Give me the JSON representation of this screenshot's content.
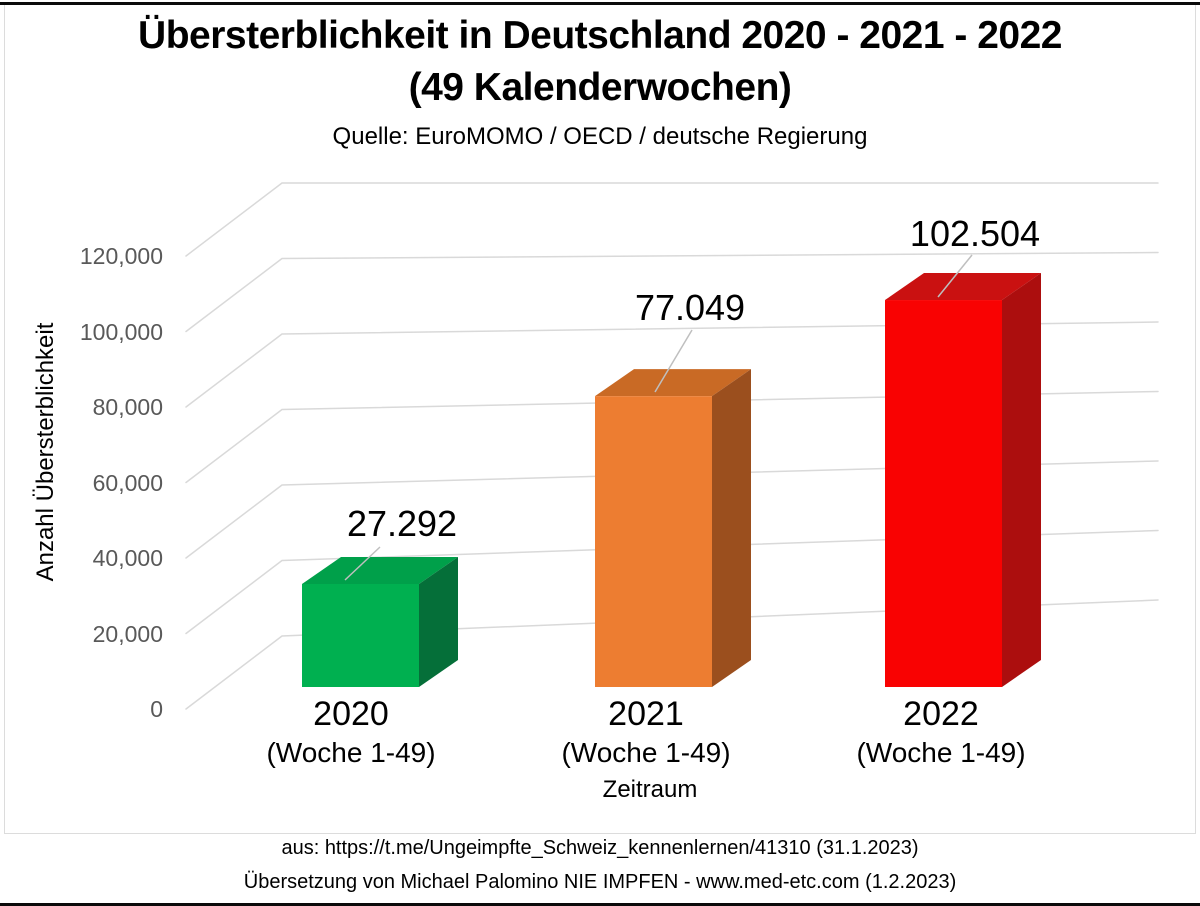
{
  "page": {
    "title_line1": "Übersterblichkeit in Deutschland 2020 - 2021 - 2022",
    "title_line2": "(49 Kalenderwochen)",
    "subtitle": "Quelle: EuroMOMO / OECD / deutsche Regierung",
    "footer_line1": "aus: https://t.me/Ungeimpfte_Schweiz_kennenlernen/41310 (31.1.2023)",
    "footer_line2": "Übersetzung von Michael Palomino NIE IMPFEN - www.med-etc.com (1.2.2023)"
  },
  "chart_data": {
    "type": "bar",
    "style": "3d-column",
    "title": "Übersterblichkeit in Deutschland 2020 - 2021 - 2022 (49 Kalenderwochen)",
    "subtitle": "Quelle: EuroMOMO / OECD / deutsche Regierung",
    "xlabel": "Zeitraum",
    "ylabel": "Anzahl Übersterblichkeit",
    "ylim": [
      0,
      120000
    ],
    "ytick_interval": 20000,
    "ytick_labels": [
      "0",
      "20,000",
      "40,000",
      "60,000",
      "80,000",
      "100,000",
      "120,000"
    ],
    "grid": true,
    "legend": false,
    "categories": [
      "2020",
      "2021",
      "2022"
    ],
    "category_sublabels": [
      "(Woche 1-49)",
      "(Woche 1-49)",
      "(Woche 1-49)"
    ],
    "values": [
      27292,
      77049,
      102504
    ],
    "value_labels": [
      "27.292",
      "77.049",
      "102.504"
    ],
    "bar_colors": [
      {
        "front": "#00B050",
        "top": "#00A04A",
        "side": "#056F39"
      },
      {
        "front": "#ED7D31",
        "top": "#C96A25",
        "side": "#9B4F1E"
      },
      {
        "front": "#F90202",
        "top": "#CA1111",
        "side": "#AC0E0E"
      }
    ],
    "axis_label_color": "#595959",
    "gridline_color": "#D9D9D9",
    "leader_line_color": "#BFBFBF"
  }
}
